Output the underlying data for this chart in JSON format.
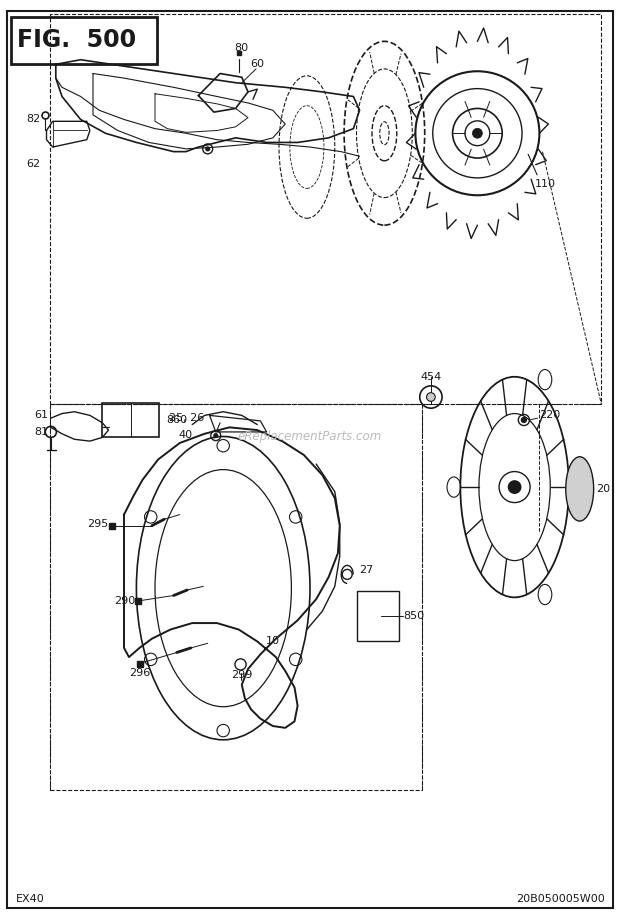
{
  "title": "FIG.  500",
  "bottom_left": "EX40",
  "bottom_right": "20B050005W00",
  "bg_color": "#ffffff",
  "line_color": "#1a1a1a",
  "text_color": "#1a1a1a",
  "watermark": "eReplacementParts.com",
  "fig_width": 6.2,
  "fig_height": 9.19,
  "dpi": 100
}
